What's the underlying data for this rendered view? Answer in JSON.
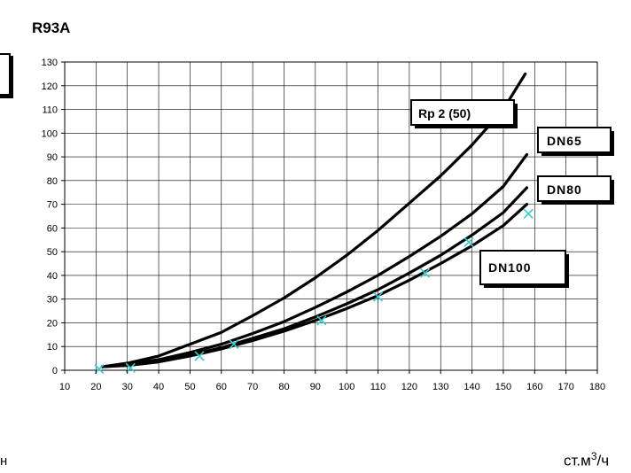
{
  "page": {
    "title": "R93A",
    "bottom_left_fragment": "н",
    "bottom_right_unit_prefix": "ст.м",
    "bottom_right_unit_exponent": "3",
    "bottom_right_unit_suffix": "/ч"
  },
  "chart_data": {
    "type": "line",
    "title": "",
    "xlabel": "",
    "ylabel": "",
    "xlim": [
      10,
      180
    ],
    "ylim": [
      0,
      130
    ],
    "x_ticks": [
      10,
      20,
      30,
      40,
      50,
      60,
      70,
      80,
      90,
      100,
      110,
      120,
      130,
      140,
      150,
      160,
      170,
      180
    ],
    "y_ticks": [
      0,
      10,
      20,
      30,
      40,
      50,
      60,
      70,
      80,
      90,
      100,
      110,
      120,
      130
    ],
    "grid": true,
    "series": [
      {
        "name": "Rp 2 (50)",
        "color": "#000000",
        "x": [
          22,
          30,
          40,
          50,
          60,
          70,
          80,
          90,
          100,
          110,
          120,
          130,
          140,
          150,
          157
        ],
        "y": [
          1.5,
          3,
          6,
          11,
          16,
          23,
          30.5,
          39,
          48.5,
          59,
          70.5,
          82,
          95,
          110,
          125
        ]
      },
      {
        "name": "DN65",
        "color": "#000000",
        "x": [
          22,
          30,
          40,
          50,
          60,
          70,
          80,
          90,
          100,
          110,
          120,
          130,
          140,
          150,
          157.5
        ],
        "y": [
          1.5,
          2.5,
          4.5,
          7.5,
          11,
          15.5,
          20.5,
          26.5,
          33,
          40,
          48,
          56.5,
          66,
          77.5,
          91
        ]
      },
      {
        "name": "DN80",
        "color": "#000000",
        "x": [
          22,
          30,
          40,
          50,
          60,
          70,
          80,
          90,
          100,
          110,
          120,
          130,
          140,
          150,
          157.5
        ],
        "y": [
          1.5,
          2.2,
          4,
          6.5,
          9.5,
          13.5,
          17.5,
          22.5,
          28,
          34,
          41,
          48.5,
          57,
          66.5,
          77
        ]
      },
      {
        "name": "DN100",
        "color": "#000000",
        "x": [
          22,
          30,
          40,
          50,
          60,
          70,
          80,
          90,
          100,
          110,
          120,
          130,
          140,
          150,
          157.5
        ],
        "y": [
          1.5,
          2,
          3.5,
          6,
          9,
          12.5,
          16.5,
          21,
          26,
          31.5,
          38,
          45,
          52.5,
          61,
          70
        ]
      }
    ],
    "markers": {
      "color": "#33cccc",
      "symbol": "x",
      "x": [
        21,
        31,
        53,
        64,
        92,
        110,
        125,
        139,
        158
      ],
      "y": [
        0.5,
        1,
        6,
        11,
        21,
        31,
        41,
        54,
        66
      ]
    }
  }
}
